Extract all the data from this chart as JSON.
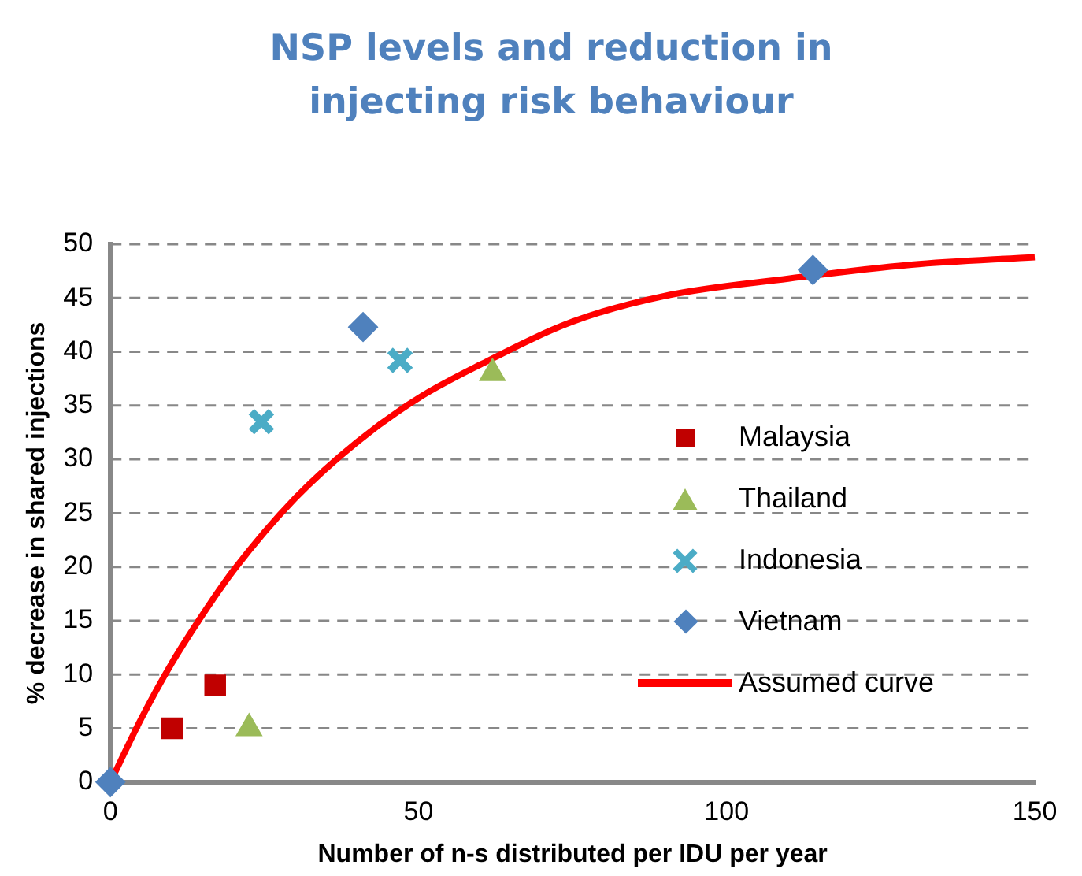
{
  "chart_data": {
    "type": "scatter",
    "title": "NSP levels and reduction in injecting risk behaviour",
    "xlabel": "Number of n-s distributed per IDU per year",
    "ylabel": "% decrease in shared injections",
    "xlim": [
      0,
      150
    ],
    "xticks": [
      0,
      50,
      100,
      150
    ],
    "ylim": [
      0,
      50
    ],
    "yticks": [
      0,
      5,
      10,
      15,
      20,
      25,
      30,
      35,
      40,
      45,
      50
    ],
    "grid": "y",
    "legend": "right",
    "series": [
      {
        "name": "Malaysia",
        "color": "#c00000",
        "marker": "square",
        "x": [
          10,
          17
        ],
        "values": [
          5,
          9
        ]
      },
      {
        "name": "Thailand",
        "color": "#9bbb59",
        "marker": "triangle",
        "x": [
          22.5,
          62
        ],
        "values": [
          5,
          38
        ]
      },
      {
        "name": "Indonesia",
        "color": "#4bacc6",
        "marker": "cross",
        "x": [
          24.5,
          47
        ],
        "values": [
          33.5,
          39.2
        ]
      },
      {
        "name": "Vietnam",
        "color": "#4f81bd",
        "marker": "diamond",
        "x": [
          0,
          41,
          114
        ],
        "values": [
          0,
          42.3,
          47.6
        ]
      },
      {
        "name": "Assumed curve",
        "type": "line",
        "color": "#ff0000",
        "marker": "none",
        "line_style": "solid",
        "x": [
          0,
          5,
          10,
          15,
          20,
          30,
          40,
          50,
          60,
          75,
          90,
          110,
          130,
          150
        ],
        "values": [
          0,
          5.9,
          11.1,
          15.6,
          19.7,
          26.4,
          31.6,
          35.7,
          38.8,
          42.8,
          45.2,
          46.8,
          48.1,
          48.8
        ]
      }
    ]
  }
}
